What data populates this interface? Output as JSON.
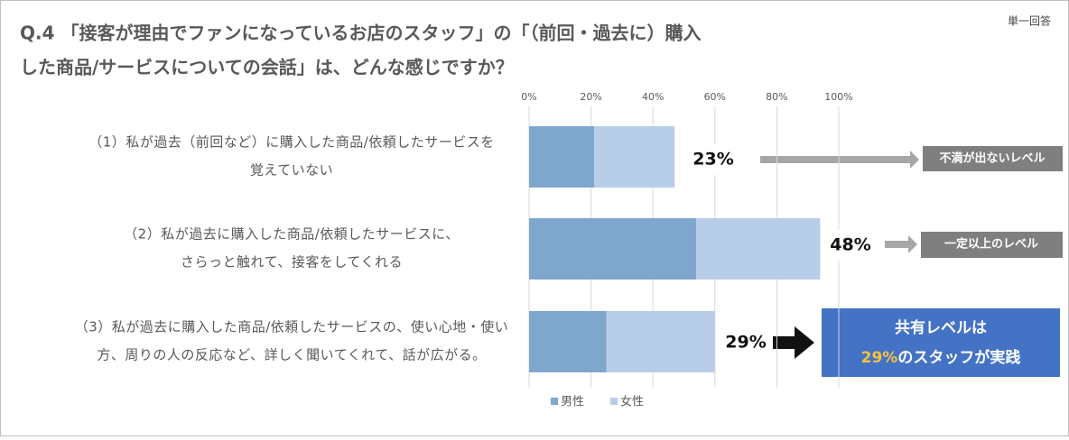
{
  "chart_data": {
    "type": "bar",
    "title": [
      "Q.4 「接客が理由でファンになっているお店のスタッフ」の「（前回・過去に）購入",
      "した商品/サービスについての会話」は、どんな感じですか？"
    ],
    "subtitle": "単一回答",
    "categories": [
      [
        "（1）私が過去（前回など）に購入した商品/依頼したサービスを",
        "覚えていない"
      ],
      [
        "（2）私が過去に購入した商品/依頼したサービスに、",
        "さらっと触れて、接客をしてくれる"
      ],
      [
        "（3）私が過去に購入した商品/依頼したサービスの、使い心地・使い",
        "方、周りの人の反応など、詳しく聞いてくれて、話が広がる。"
      ]
    ],
    "series": [
      {
        "name": "男性",
        "color": "#7fa6cc",
        "values": [
          21,
          54,
          25
        ]
      },
      {
        "name": "女性",
        "color": "#b8cde8",
        "values": [
          26,
          40,
          35
        ]
      }
    ],
    "totals": {
      "values": [
        23,
        48,
        29
      ],
      "value_labels": [
        "23%",
        "48%",
        "29%"
      ]
    },
    "xlim": [
      0,
      100
    ],
    "xticks": [
      {
        "value": 0,
        "label": "0%"
      },
      {
        "value": 20,
        "label": "20%"
      },
      {
        "value": 40,
        "label": "40%"
      },
      {
        "value": 60,
        "label": "60%"
      },
      {
        "value": 80,
        "label": "80%"
      },
      {
        "value": 100,
        "label": "100%"
      }
    ],
    "grid": true,
    "legend": "bottom",
    "annotations": [
      "不満が出ないレベル",
      "一定以上のレベル"
    ],
    "callout": {
      "line1": "共有レベルは",
      "highlight": "29%",
      "line2": "のスタッフが実践"
    }
  }
}
